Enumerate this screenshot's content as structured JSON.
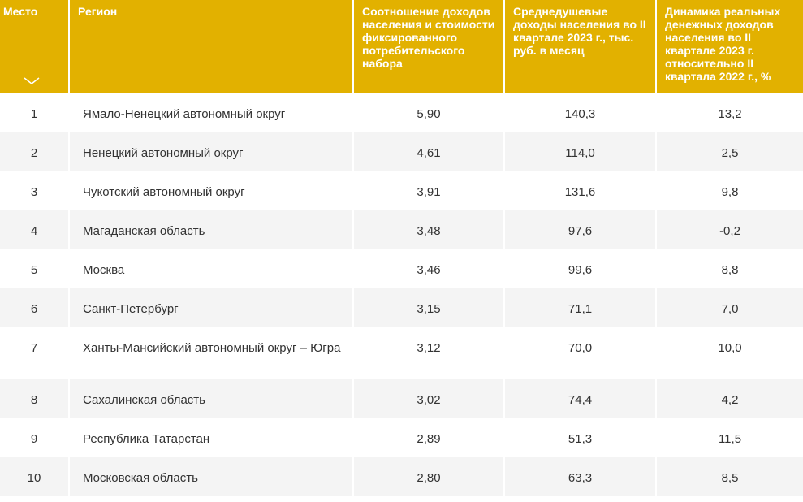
{
  "colors": {
    "header_bg": "#e2b100",
    "header_text": "#ffffff",
    "row_alt_bg": "#f4f4f4",
    "cell_text": "#333333"
  },
  "header": {
    "rank": "Место",
    "region": "Регион",
    "ratio": "Соотношение доходов населения и стоимости фиксированного потребительского набора",
    "income": "Среднедушевые доходы населения во II квартале 2023 г., тыс. руб. в месяц",
    "dynamics": "Динамика реальных денежных доходов населения во II квартале 2023 г. относительно II квартала 2022 г., %",
    "sort_icon": "chevron-down-icon"
  },
  "rows": [
    {
      "rank": "1",
      "region": "Ямало-Ненецкий автономный округ",
      "ratio": "5,90",
      "income": "140,3",
      "dynamics": "13,2"
    },
    {
      "rank": "2",
      "region": "Ненецкий автономный округ",
      "ratio": "4,61",
      "income": "114,0",
      "dynamics": "2,5"
    },
    {
      "rank": "3",
      "region": "Чукотский автономный округ",
      "ratio": "3,91",
      "income": "131,6",
      "dynamics": "9,8"
    },
    {
      "rank": "4",
      "region": "Магаданская область",
      "ratio": "3,48",
      "income": "97,6",
      "dynamics": "-0,2"
    },
    {
      "rank": "5",
      "region": "Москва",
      "ratio": "3,46",
      "income": "99,6",
      "dynamics": "8,8"
    },
    {
      "rank": "6",
      "region": "Санкт-Петербург",
      "ratio": "3,15",
      "income": "71,1",
      "dynamics": "7,0"
    },
    {
      "rank": "7",
      "region": "Ханты-Мансийский автономный округ – Югра",
      "ratio": "3,12",
      "income": "70,0",
      "dynamics": "10,0"
    },
    {
      "rank": "8",
      "region": "Сахалинская область",
      "ratio": "3,02",
      "income": "74,4",
      "dynamics": "4,2"
    },
    {
      "rank": "9",
      "region": "Республика Татарстан",
      "ratio": "2,89",
      "income": "51,3",
      "dynamics": "11,5"
    },
    {
      "rank": "10",
      "region": "Московская область",
      "ratio": "2,80",
      "income": "63,3",
      "dynamics": "8,5"
    }
  ]
}
